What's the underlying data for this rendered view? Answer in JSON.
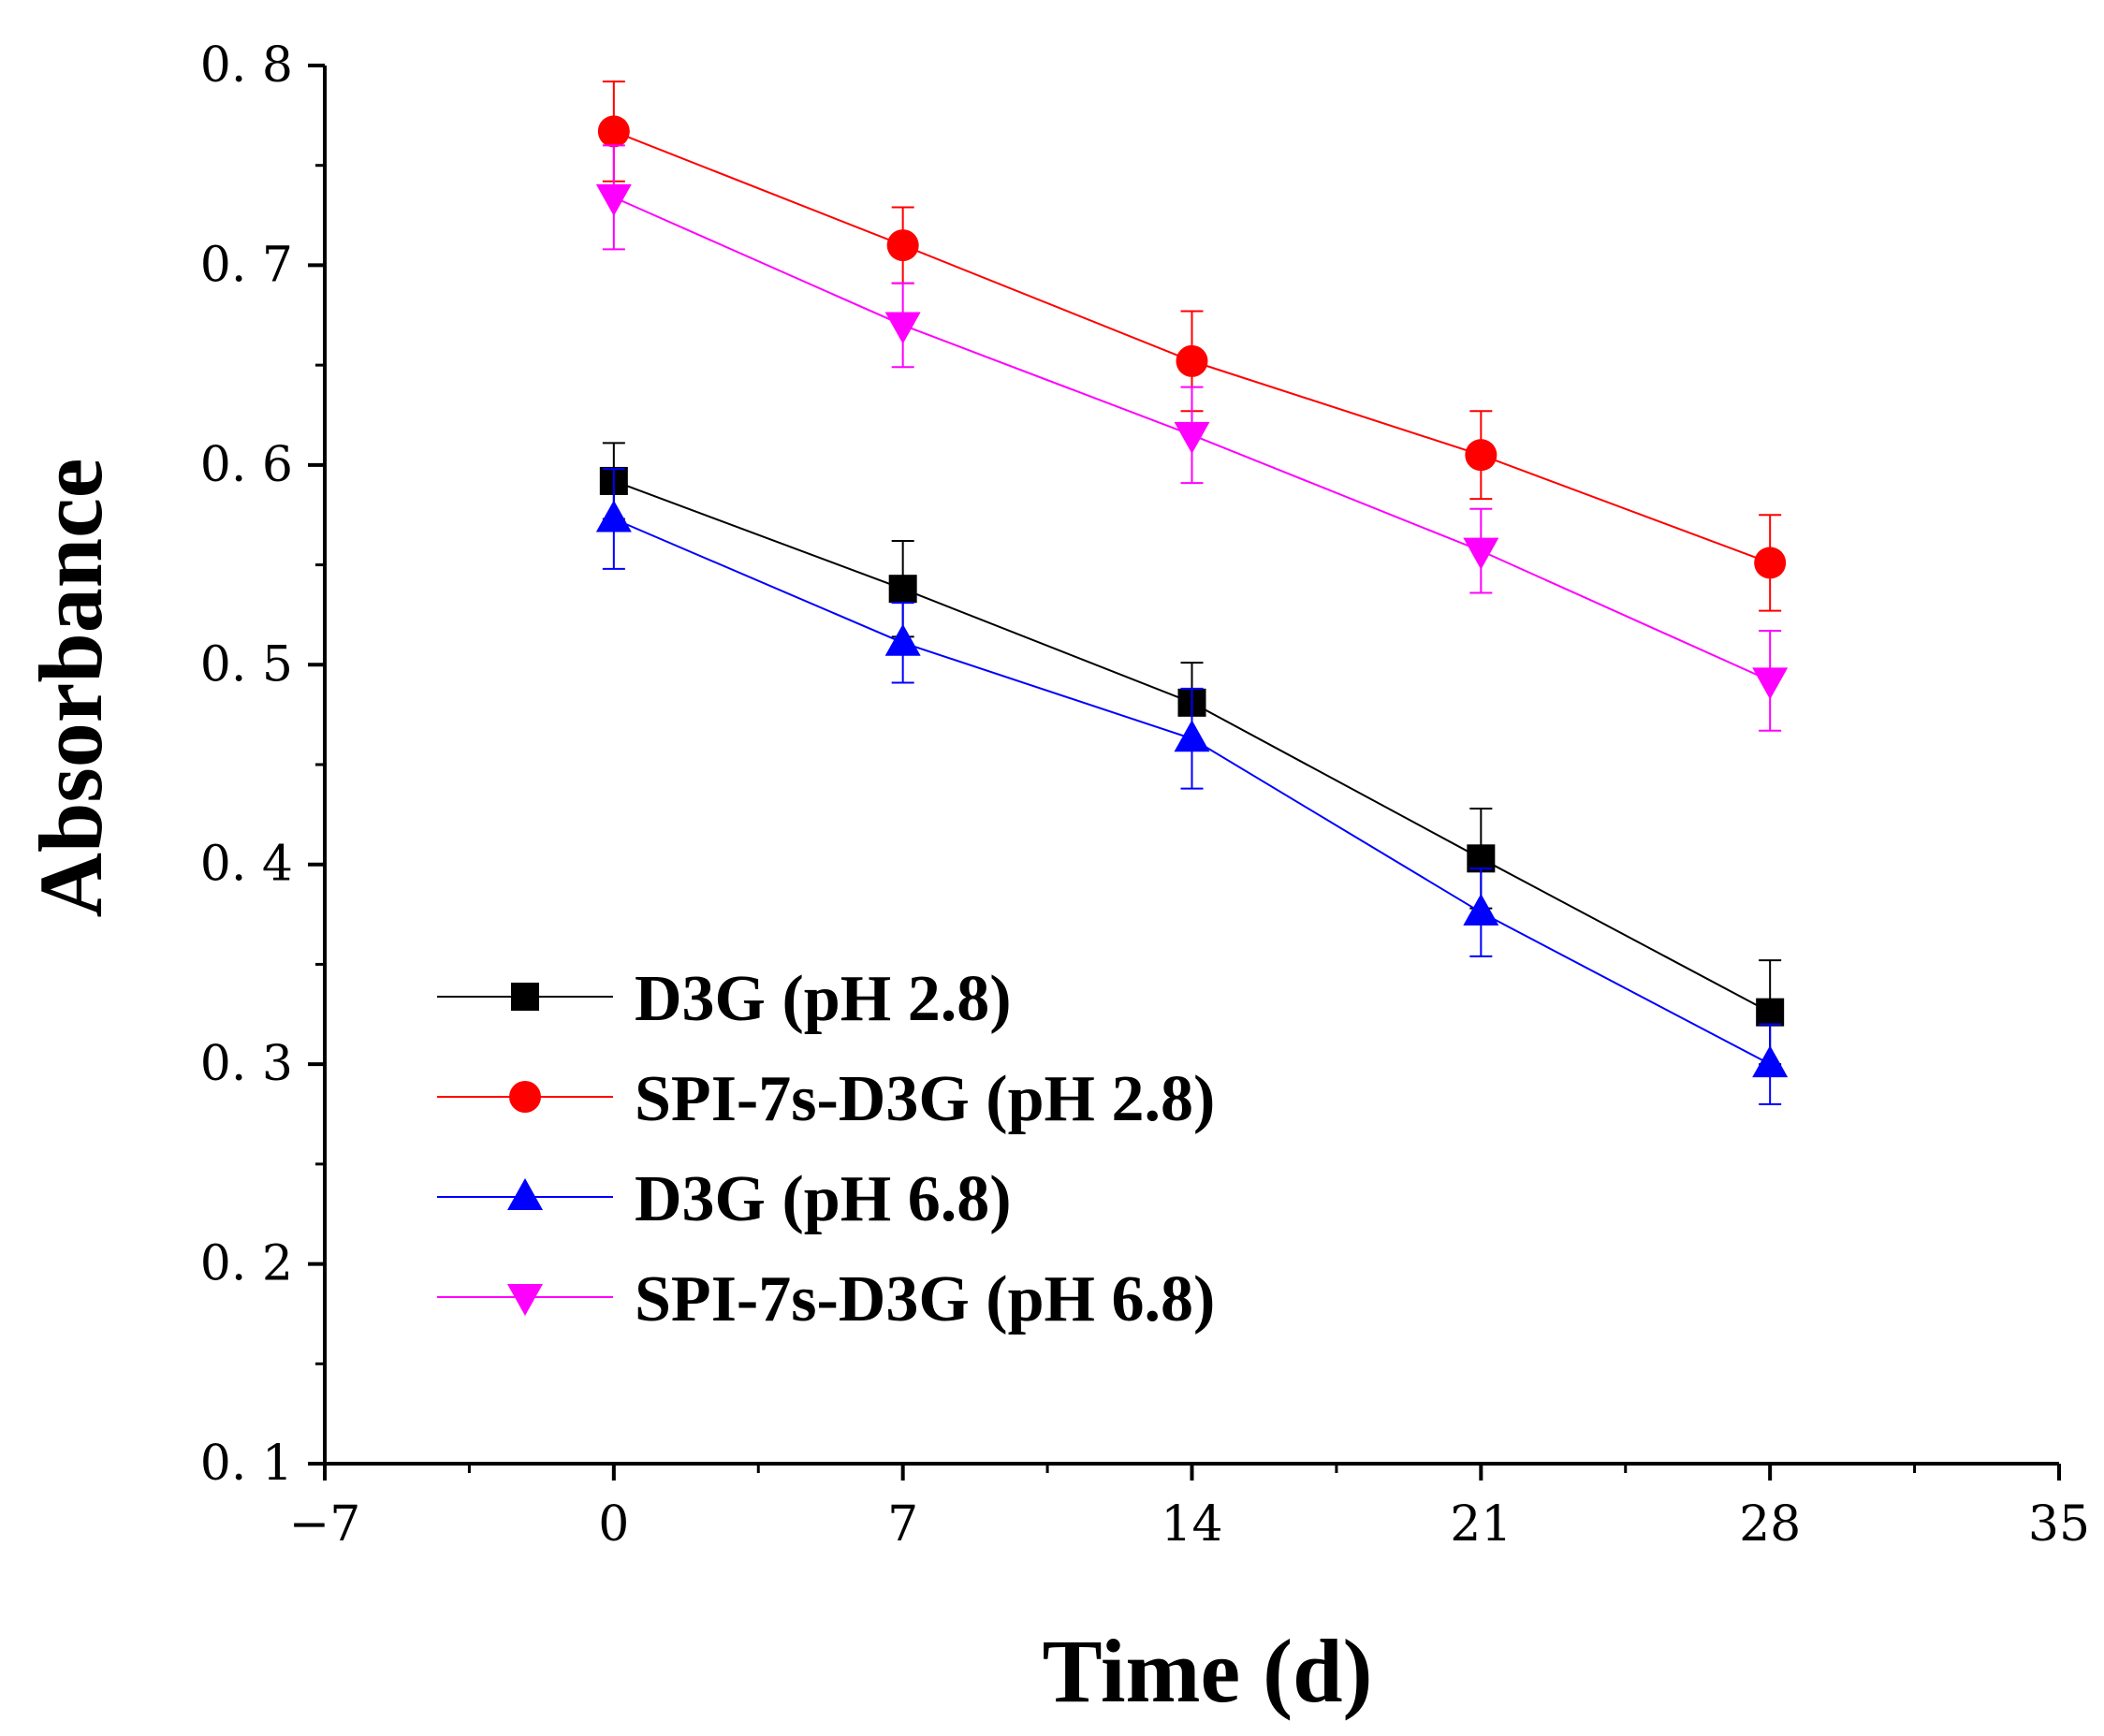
{
  "chart_data": {
    "type": "line",
    "title": "",
    "xlabel": "Time (d)",
    "ylabel": "Absorbance",
    "xlim": [
      -7,
      35
    ],
    "ylim": [
      0.1,
      0.8
    ],
    "xticks": [
      -7,
      0,
      7,
      14,
      21,
      28,
      35
    ],
    "xtick_labels": [
      "−7",
      "0",
      "7",
      "14",
      "21",
      "28",
      "35"
    ],
    "yticks": [
      0.1,
      0.2,
      0.3,
      0.4,
      0.5,
      0.6,
      0.7,
      0.8
    ],
    "ytick_labels": [
      "0. 1",
      "0. 2",
      "0. 3",
      "0. 4",
      "0. 5",
      "0. 6",
      "0. 7",
      "0. 8"
    ],
    "grid": false,
    "legend_position": "bottom-left",
    "x": [
      0,
      7,
      14,
      21,
      28
    ],
    "series": [
      {
        "name": "D3G (pH 2.8)",
        "color": "#000000",
        "marker": "square",
        "values": [
          0.592,
          0.538,
          0.481,
          0.403,
          0.326
        ],
        "errors": [
          0.019,
          0.024,
          0.02,
          0.025,
          0.026
        ]
      },
      {
        "name": "SPI-7s-D3G (pH 2.8)",
        "color": "#ff0000",
        "marker": "circle",
        "values": [
          0.767,
          0.71,
          0.652,
          0.605,
          0.551
        ],
        "errors": [
          0.025,
          0.019,
          0.025,
          0.022,
          0.024
        ]
      },
      {
        "name": "D3G (pH 6.8)",
        "color": "#0000ff",
        "marker": "triangle-up",
        "values": [
          0.573,
          0.511,
          0.463,
          0.376,
          0.3
        ],
        "errors": [
          0.025,
          0.02,
          0.025,
          0.022,
          0.02
        ]
      },
      {
        "name": "SPI-7s-D3G (pH 6.8)",
        "color": "#ff00ff",
        "marker": "triangle-down",
        "values": [
          0.734,
          0.67,
          0.615,
          0.557,
          0.492
        ],
        "errors": [
          0.026,
          0.021,
          0.024,
          0.021,
          0.025
        ]
      }
    ]
  }
}
